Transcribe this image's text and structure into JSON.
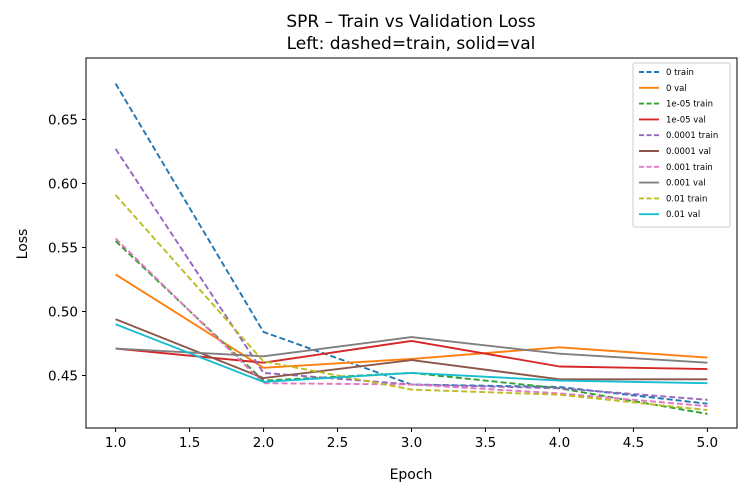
{
  "chart_data": {
    "type": "line",
    "title": "SPR – Train vs Validation Loss",
    "subtitle": "Left: dashed=train, solid=val",
    "xlabel": "Epoch",
    "ylabel": "Loss",
    "xlim": [
      0.8,
      5.2
    ],
    "ylim": [
      0.409,
      0.698
    ],
    "xticks": [
      1.0,
      1.5,
      2.0,
      2.5,
      3.0,
      3.5,
      4.0,
      4.5,
      5.0
    ],
    "xtick_labels": [
      "1.0",
      "1.5",
      "2.0",
      "2.5",
      "3.0",
      "3.5",
      "4.0",
      "4.5",
      "5.0"
    ],
    "yticks": [
      0.45,
      0.5,
      0.55,
      0.6,
      0.65
    ],
    "ytick_labels": [
      "0.45",
      "0.50",
      "0.55",
      "0.60",
      "0.65"
    ],
    "grid": false,
    "legend_position": "top-right",
    "x": [
      1,
      2,
      3,
      4,
      5
    ],
    "series": [
      {
        "name": "0 train",
        "color": "#1f77b4",
        "style": "dashed",
        "values": [
          0.678,
          0.484,
          0.443,
          0.441,
          0.428
        ]
      },
      {
        "name": "0 val",
        "color": "#ff7f0e",
        "style": "solid",
        "values": [
          0.529,
          0.456,
          0.463,
          0.472,
          0.464
        ]
      },
      {
        "name": "1e-05 train",
        "color": "#2ca02c",
        "style": "dashed",
        "values": [
          0.555,
          0.446,
          0.452,
          0.44,
          0.42
        ]
      },
      {
        "name": "1e-05 val",
        "color": "#d62728",
        "style": "solid",
        "values": [
          0.471,
          0.46,
          0.477,
          0.457,
          0.455
        ]
      },
      {
        "name": "0.0001 train",
        "color": "#9467bd",
        "style": "dashed",
        "values": [
          0.627,
          0.452,
          0.443,
          0.44,
          0.431
        ]
      },
      {
        "name": "0.0001 val",
        "color": "#8c564b",
        "style": "solid",
        "values": [
          0.494,
          0.448,
          0.462,
          0.447,
          0.447
        ]
      },
      {
        "name": "0.001 train",
        "color": "#e377c2",
        "style": "dashed",
        "values": [
          0.557,
          0.444,
          0.443,
          0.436,
          0.426
        ]
      },
      {
        "name": "0.001 val",
        "color": "#7f7f7f",
        "style": "solid",
        "values": [
          0.471,
          0.465,
          0.48,
          0.467,
          0.46
        ]
      },
      {
        "name": "0.01 train",
        "color": "#bcbd22",
        "style": "dashed",
        "values": [
          0.591,
          0.461,
          0.439,
          0.435,
          0.423
        ]
      },
      {
        "name": "0.01 val",
        "color": "#17becf",
        "style": "solid",
        "values": [
          0.49,
          0.445,
          0.452,
          0.446,
          0.444
        ]
      }
    ]
  }
}
